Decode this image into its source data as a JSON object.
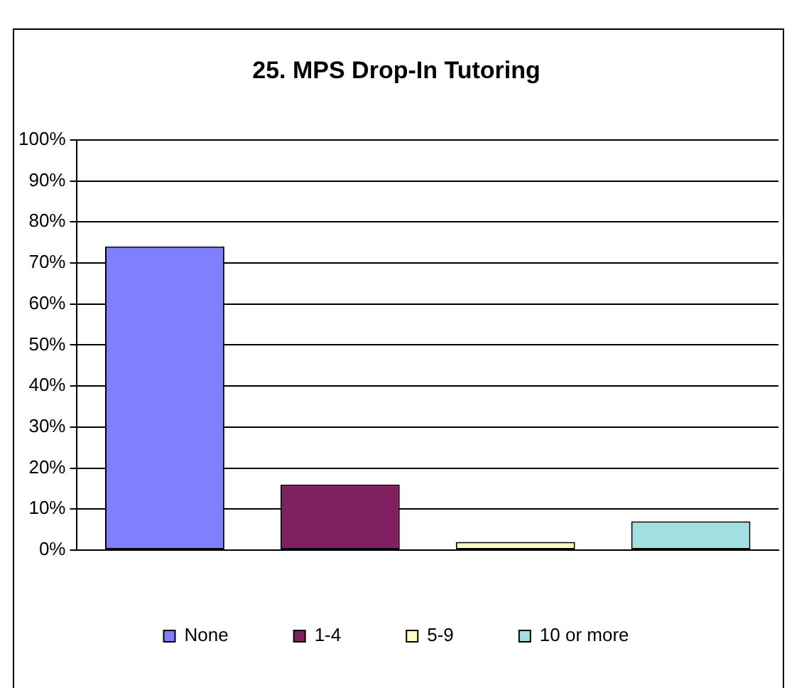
{
  "chart_data": {
    "type": "bar",
    "title": "25. MPS Drop-In Tutoring",
    "categories": [
      null,
      null,
      null,
      null
    ],
    "series": [
      {
        "name": "None",
        "color": "#8080ff",
        "values": [
          74,
          null,
          null,
          null
        ]
      },
      {
        "name": "1-4",
        "color": "#802060",
        "values": [
          null,
          16,
          null,
          null
        ]
      },
      {
        "name": "5-9",
        "color": "#ffffc0",
        "values": [
          null,
          null,
          2,
          null
        ]
      },
      {
        "name": "10 or more",
        "color": "#a0e0e0",
        "values": [
          null,
          null,
          null,
          7
        ]
      }
    ],
    "ylim": [
      0,
      100
    ],
    "yticks": [
      {
        "value": 0,
        "label": "0%"
      },
      {
        "value": 10,
        "label": "10%"
      },
      {
        "value": 20,
        "label": "20%"
      },
      {
        "value": 30,
        "label": "30%"
      },
      {
        "value": 40,
        "label": "40%"
      },
      {
        "value": 50,
        "label": "50%"
      },
      {
        "value": 60,
        "label": "60%"
      },
      {
        "value": 70,
        "label": "70%"
      },
      {
        "value": 80,
        "label": "80%"
      },
      {
        "value": 90,
        "label": "90%"
      },
      {
        "value": 100,
        "label": "100%"
      }
    ],
    "grid": "y",
    "legend": "bottom"
  }
}
